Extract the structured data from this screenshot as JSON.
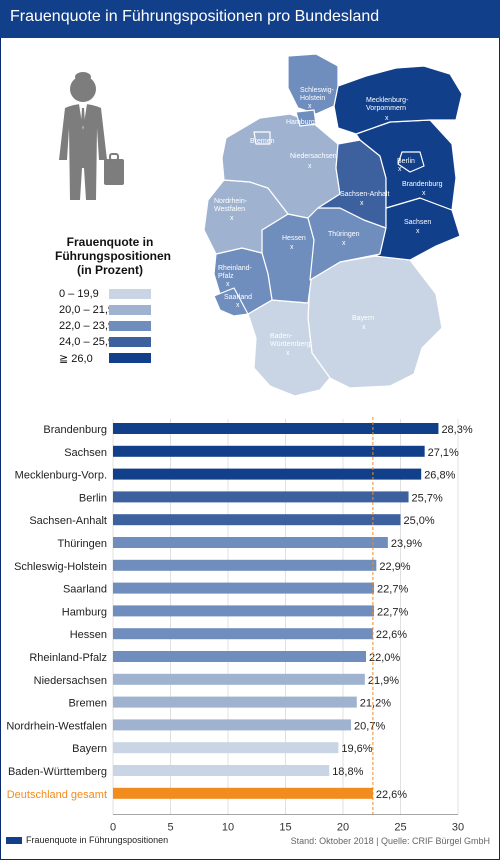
{
  "title": "Frauenquote in Führungspositionen pro Bundesland",
  "colors": {
    "header": "#123f8a",
    "c1": "#c9d5e4",
    "c2": "#9fb3d0",
    "c3": "#6f8ebe",
    "c4": "#3d619f",
    "c5": "#123f8a",
    "total": "#f28c1e",
    "icon": "#7d7d7d"
  },
  "legend": {
    "title": "Frauenquote in Führungspositionen (in Prozent)",
    "items": [
      {
        "label": "0 – 19,9",
        "color": "#c9d5e4"
      },
      {
        "label": "20,0 – 21,9",
        "color": "#9fb3d0"
      },
      {
        "label": "22,0 – 23,9",
        "color": "#6f8ebe"
      },
      {
        "label": "24,0 – 25,9",
        "color": "#3d619f"
      },
      {
        "label": "≧ 26,0",
        "color": "#123f8a"
      }
    ]
  },
  "map_labels": {
    "schleswig": "Schleswig-",
    "holstein": "Holstein",
    "hamburg": "Hamburg",
    "bremen": "Bremen",
    "meck1": "Mecklenburg-",
    "meck2": "Vorpommern",
    "nieders": "Niedersachsen",
    "berlin": "Berlin",
    "brandenburg": "Brandenburg",
    "nrw1": "Nordrhein-",
    "nrw2": "Westfalen",
    "sachsenanhalt": "Sachsen-Anhalt",
    "sachsen": "Sachsen",
    "hessen": "Hessen",
    "thueringen": "Thüringen",
    "rp1": "Rheinland-",
    "rp2": "Pfalz",
    "saarland": "Saarland",
    "bayern": "Bayern",
    "bw1": "Baden-",
    "bw2": "Württemberg",
    "x": "x"
  },
  "chart_data": {
    "type": "bar",
    "orientation": "horizontal",
    "categories": [
      "Brandenburg",
      "Sachsen",
      "Mecklenburg-Vorp.",
      "Berlin",
      "Sachsen-Anhalt",
      "Thüringen",
      "Schleswig-Holstein",
      "Saarland",
      "Hamburg",
      "Hessen",
      "Rheinland-Pfalz",
      "Niedersachsen",
      "Bremen",
      "Nordrhein-Westfalen",
      "Bayern",
      "Baden-Württemberg",
      "Deutschland gesamt"
    ],
    "values": [
      28.3,
      27.1,
      26.8,
      25.7,
      25.0,
      23.9,
      22.9,
      22.7,
      22.7,
      22.6,
      22.0,
      21.9,
      21.2,
      20.7,
      19.6,
      18.8,
      22.6
    ],
    "value_labels": [
      "28,3%",
      "27,1%",
      "26,8%",
      "25,7%",
      "25,0%",
      "23,9%",
      "22,9%",
      "22,7%",
      "22,7%",
      "22,6%",
      "22,0%",
      "21,9%",
      "21,2%",
      "20,7%",
      "19,6%",
      "18,8%",
      "22,6%"
    ],
    "colors": [
      "#123f8a",
      "#123f8a",
      "#123f8a",
      "#3d619f",
      "#3d619f",
      "#6f8ebe",
      "#6f8ebe",
      "#6f8ebe",
      "#6f8ebe",
      "#6f8ebe",
      "#6f8ebe",
      "#9fb3d0",
      "#9fb3d0",
      "#9fb3d0",
      "#c9d5e4",
      "#c9d5e4",
      "#f28c1e"
    ],
    "xlim": [
      0,
      30
    ],
    "ticks": [
      "0",
      "5",
      "10",
      "15",
      "20",
      "25",
      "30"
    ],
    "reference_line": 22.6,
    "grid": true,
    "series_name": "Frauenquote in Führungspositionen"
  },
  "source": "Stand: Oktober 2018 | Quelle: CRIF Bürgel GmbH"
}
